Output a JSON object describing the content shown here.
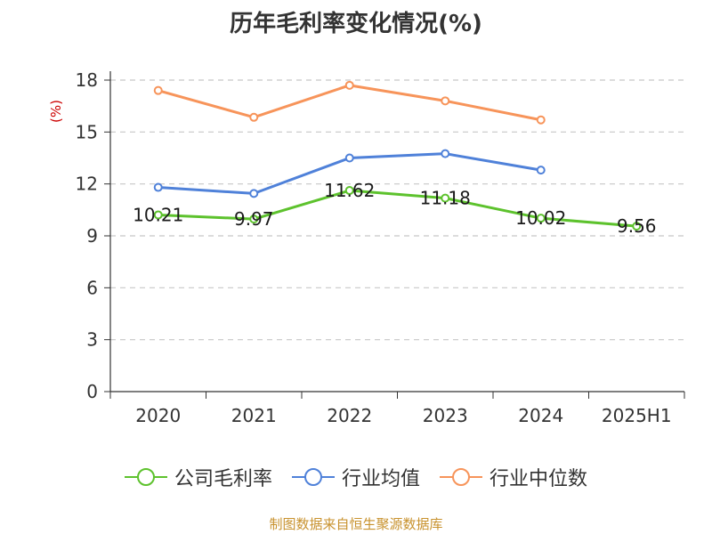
{
  "chart_data": {
    "type": "line",
    "title": "历年毛利率变化情况(%)",
    "ylabel": "(%)",
    "xlabel": "",
    "ylim": [
      0,
      18
    ],
    "yticks": [
      0,
      3,
      6,
      9,
      12,
      15,
      18
    ],
    "categories": [
      "2020",
      "2021",
      "2022",
      "2023",
      "2024",
      "2025H1"
    ],
    "grid": true,
    "legend_position": "bottom",
    "series": [
      {
        "name": "公司毛利率",
        "color": "#5dc22d",
        "values": [
          10.21,
          9.97,
          11.62,
          11.18,
          10.02,
          9.56
        ],
        "labels": [
          "10.21",
          "9.97",
          "11.62",
          "11.18",
          "10.02",
          "9.56"
        ]
      },
      {
        "name": "行业均值",
        "color": "#4f81d9",
        "values": [
          11.8,
          11.45,
          13.5,
          13.75,
          12.8,
          null
        ]
      },
      {
        "name": "行业中位数",
        "color": "#f7945a",
        "values": [
          17.4,
          15.85,
          17.7,
          16.8,
          15.7,
          null
        ]
      }
    ]
  },
  "source": "制图数据来自恒生聚源数据库"
}
